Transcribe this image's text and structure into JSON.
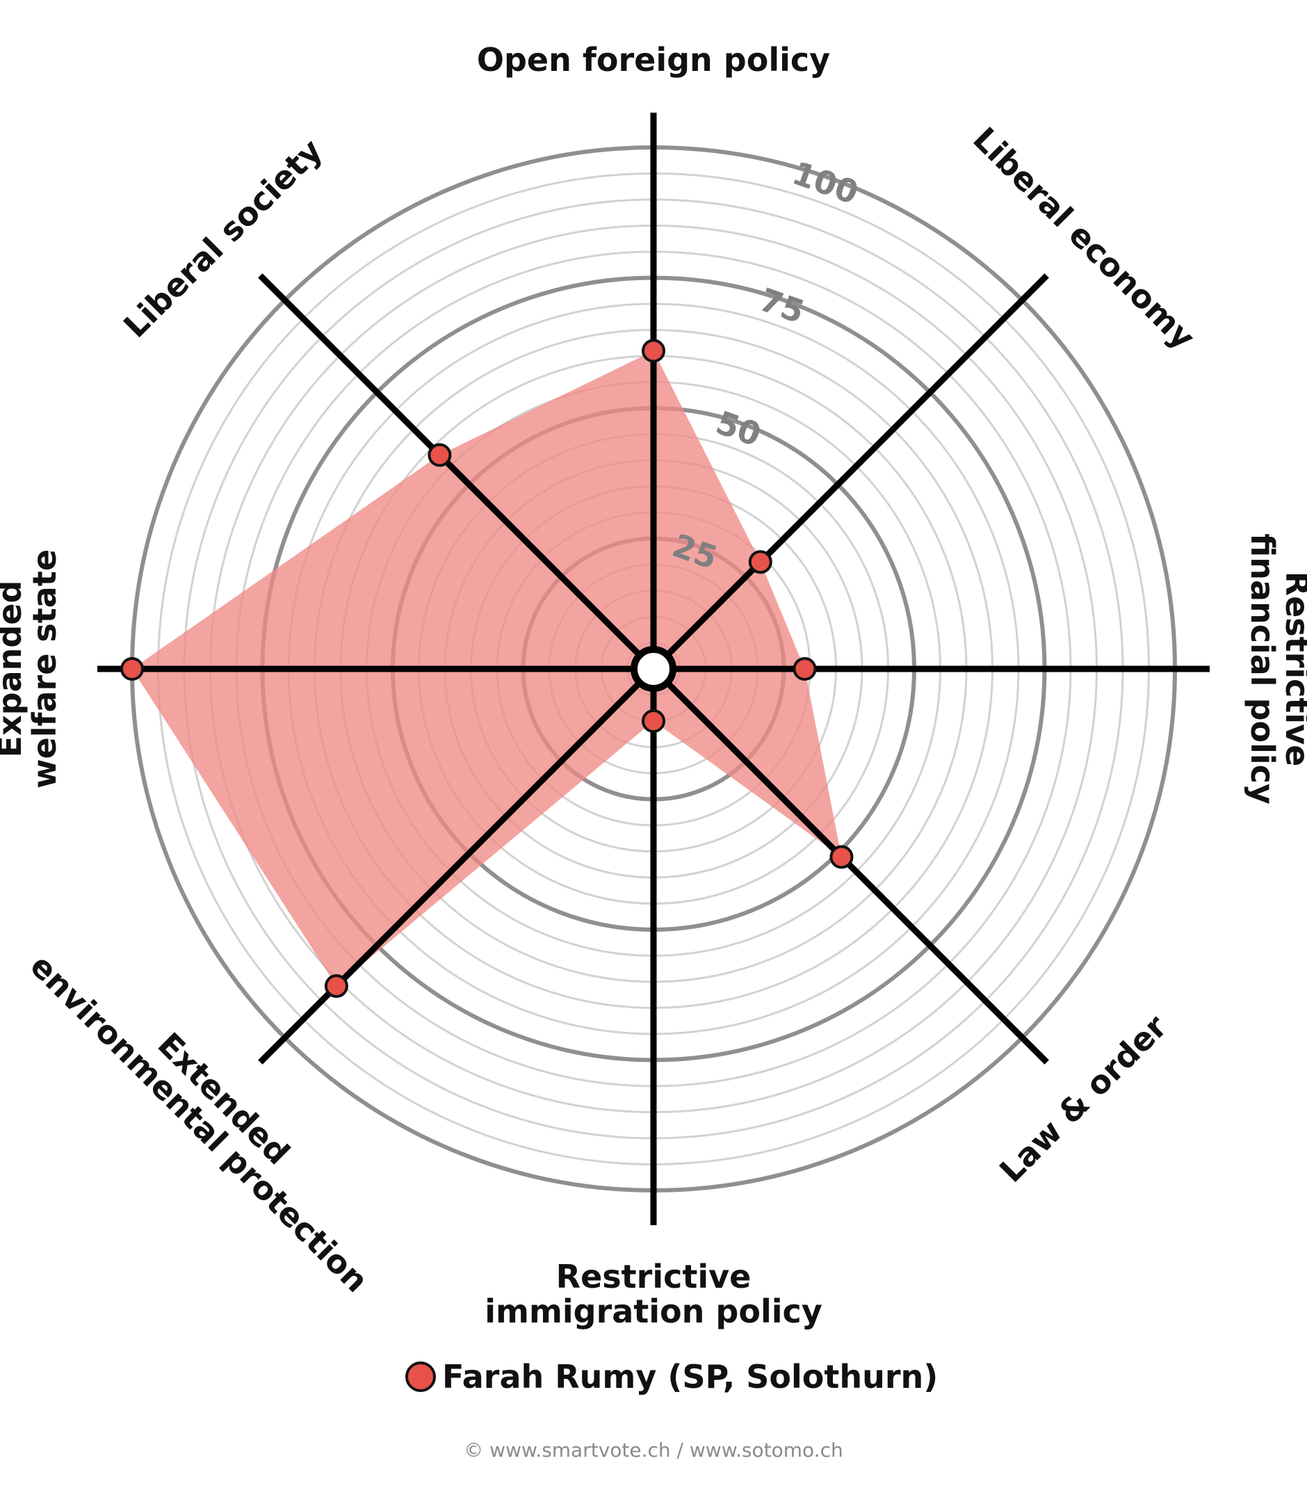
{
  "chart_data": {
    "type": "radar",
    "axes": [
      "Open foreign policy",
      "Liberal economy",
      "Restrictive financial policy",
      "Law & order",
      "Restrictive immigration policy",
      "Extended environmental protection",
      "Expanded welfare state",
      "Liberal society"
    ],
    "axis_label_lines": [
      [
        "Open foreign policy"
      ],
      [
        "Liberal economy"
      ],
      [
        "Restrictive",
        "financial policy"
      ],
      [
        "Law & order"
      ],
      [
        "Restrictive",
        "immigration policy"
      ],
      [
        "Extended",
        "environmental protection"
      ],
      [
        "Expanded",
        "welfare state"
      ],
      [
        "Liberal society"
      ]
    ],
    "ticks": [
      "25",
      "50",
      "75",
      "100"
    ],
    "range": [
      0,
      100
    ],
    "grid_step": 5,
    "series": [
      {
        "name": "Farah Rumy (SP, Solothurn)",
        "values": [
          61,
          29,
          29,
          51,
          10,
          86,
          100,
          58
        ],
        "color": "#e8524a",
        "fill": "#f08a86"
      }
    ],
    "legend_placement": "bottom"
  },
  "footer": {
    "credit": "© www.smartvote.ch / www.sotomo.ch"
  }
}
